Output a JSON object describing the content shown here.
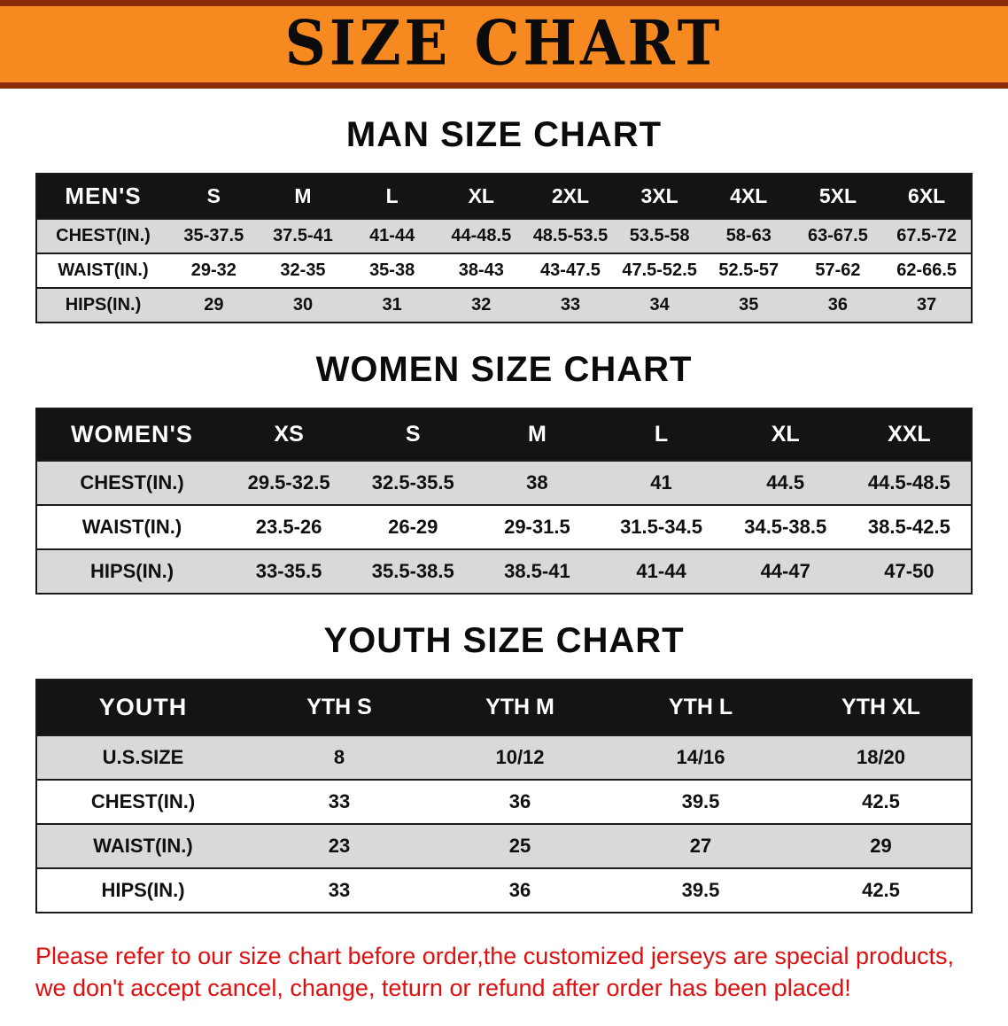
{
  "banner": {
    "title": "SIZE CHART"
  },
  "colors": {
    "banner-bg": "#f6891f",
    "banner-edge": "#8c2d0a",
    "header-bg": "#141414",
    "header-text": "#ffffff",
    "row-alt-bg": "#d9d9d9",
    "table-line": "#1a1a1a",
    "text": "#0d0d0d",
    "disclaimer-red": "#dd0f0f"
  },
  "sections": [
    {
      "id": "men",
      "heading": "MAN SIZE CHART",
      "table": {
        "header": [
          "MEN'S",
          "S",
          "M",
          "L",
          "XL",
          "2XL",
          "3XL",
          "4XL",
          "5XL",
          "6XL"
        ],
        "rows": [
          [
            "CHEST(IN.)",
            "35-37.5",
            "37.5-41",
            "41-44",
            "44-48.5",
            "48.5-53.5",
            "53.5-58",
            "58-63",
            "63-67.5",
            "67.5-72"
          ],
          [
            "WAIST(IN.)",
            "29-32",
            "32-35",
            "35-38",
            "38-43",
            "43-47.5",
            "47.5-52.5",
            "52.5-57",
            "57-62",
            "62-66.5"
          ],
          [
            "HIPS(IN.)",
            "29",
            "30",
            "31",
            "32",
            "33",
            "34",
            "35",
            "36",
            "37"
          ]
        ]
      }
    },
    {
      "id": "women",
      "heading": "WOMEN SIZE CHART",
      "table": {
        "header": [
          "WOMEN'S",
          "XS",
          "S",
          "M",
          "L",
          "XL",
          "XXL"
        ],
        "rows": [
          [
            "CHEST(IN.)",
            "29.5-32.5",
            "32.5-35.5",
            "38",
            "41",
            "44.5",
            "44.5-48.5"
          ],
          [
            "WAIST(IN.)",
            "23.5-26",
            "26-29",
            "29-31.5",
            "31.5-34.5",
            "34.5-38.5",
            "38.5-42.5"
          ],
          [
            "HIPS(IN.)",
            "33-35.5",
            "35.5-38.5",
            "38.5-41",
            "41-44",
            "44-47",
            "47-50"
          ]
        ]
      }
    },
    {
      "id": "youth",
      "heading": "YOUTH SIZE CHART",
      "table": {
        "header": [
          "YOUTH",
          "YTH S",
          "YTH M",
          "YTH L",
          "YTH XL"
        ],
        "rows": [
          [
            "U.S.SIZE",
            "8",
            "10/12",
            "14/16",
            "18/20"
          ],
          [
            "CHEST(IN.)",
            "33",
            "36",
            "39.5",
            "42.5"
          ],
          [
            "WAIST(IN.)",
            "23",
            "25",
            "27",
            "29"
          ],
          [
            "HIPS(IN.)",
            "33",
            "36",
            "39.5",
            "42.5"
          ]
        ]
      }
    }
  ],
  "disclaimer": {
    "line1": "Please refer to our size chart before order,the customized jerseys are special products,",
    "line2": "we don't accept cancel, change, teturn or refund after order has been placed!"
  }
}
